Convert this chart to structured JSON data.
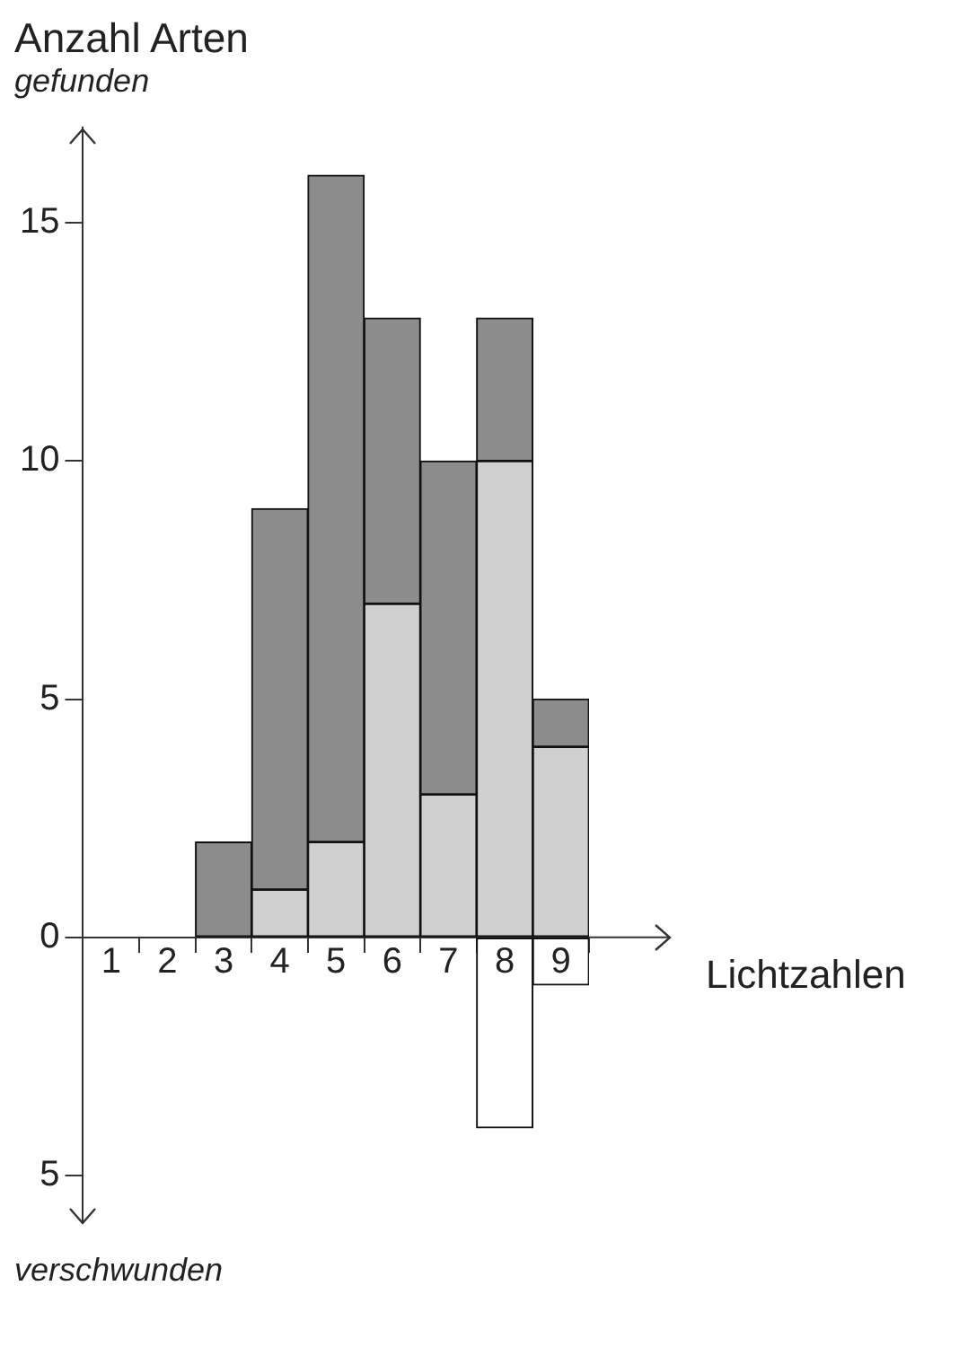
{
  "chart_data": {
    "type": "bar",
    "title": "Anzahl Arten",
    "ylabel": "gefunden",
    "xlabel": "Lichtzahlen",
    "annotations": [
      "verschwunden"
    ],
    "categories": [
      "1",
      "2",
      "3",
      "4",
      "5",
      "6",
      "7",
      "8",
      "9"
    ],
    "stacked": true,
    "series": [
      {
        "color": "#d0d0d0",
        "values": [
          0,
          0,
          0,
          1,
          2,
          7,
          3,
          10,
          4
        ]
      },
      {
        "color": "#8c8c8c",
        "values": [
          0,
          0,
          2,
          8,
          14,
          6,
          7,
          3,
          1
        ]
      },
      {
        "color": "#ffffff",
        "values": [
          0,
          0,
          0,
          0,
          0,
          0,
          0,
          -4,
          -1
        ]
      }
    ],
    "ylim": [
      -6,
      17
    ],
    "yticks": [
      {
        "value": -5,
        "label": "5"
      },
      0,
      5,
      10,
      15
    ],
    "grid": false,
    "legend": false
  }
}
